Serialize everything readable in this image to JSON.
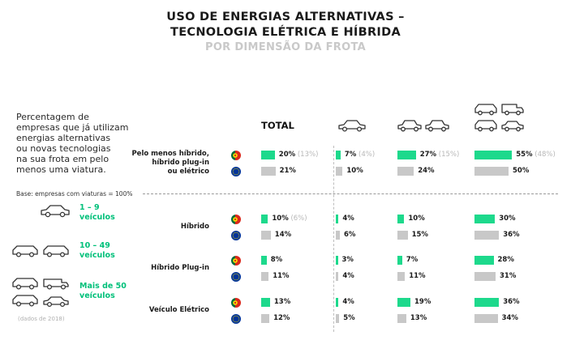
{
  "title": {
    "line1": "USO DE ENERGIAS ALTERNATIVAS –",
    "line2": "TECNOLOGIA ELÉTRICA E HÍBRIDA",
    "subtitle": "POR DIMENSÃO DA FROTA"
  },
  "description": [
    "Percentagem de",
    "empresas que já utilizam",
    "energias alternativas",
    "ou novas tecnologias",
    "na sua frota em pelo",
    "menos uma viatura."
  ],
  "base_note": "Base: empresas com viaturas = 100%",
  "data_note": "(dados de 2018)",
  "legend": [
    {
      "label_lines": [
        "1 – 9",
        "veículos"
      ],
      "icon": "car-icon-1"
    },
    {
      "label_lines": [
        "10 – 49",
        "veículos"
      ],
      "icon": "car-icon-2"
    },
    {
      "label_lines": [
        "Mais de 50",
        "veículos"
      ],
      "icon": "car-icon-4"
    }
  ],
  "columns": {
    "total_label": "TOTAL"
  },
  "colors": {
    "portugal": "#1dd98c",
    "europe": "#c8c8c8",
    "previous": "#b8b8b8",
    "accent_text": "#00c07a"
  },
  "chart_data": {
    "type": "bar",
    "orientation": "horizontal",
    "categories": [
      "Pelo menos híbrido, híbrido plug-in ou elétrico",
      "Híbrido",
      "Híbrido Plug-in",
      "Veículo Elétrico"
    ],
    "category_label_lines": [
      [
        "Pelo menos híbrido,",
        "híbrido plug-in",
        "ou elétrico"
      ],
      [
        "Híbrido"
      ],
      [
        "Híbrido Plug-in"
      ],
      [
        "Veículo Elétrico"
      ]
    ],
    "groups": [
      "TOTAL",
      "1 – 9 veículos",
      "10 – 49 veículos",
      "Mais de 50 veículos"
    ],
    "series": [
      {
        "flag": "portugal",
        "values": [
          [
            20,
            7,
            27,
            55
          ],
          [
            10,
            4,
            10,
            30
          ],
          [
            8,
            3,
            7,
            28
          ],
          [
            13,
            4,
            19,
            36
          ]
        ],
        "previous": [
          [
            13,
            4,
            15,
            48
          ],
          [
            6,
            null,
            null,
            null
          ],
          [
            null,
            null,
            null,
            null
          ],
          [
            null,
            null,
            null,
            null
          ]
        ]
      },
      {
        "flag": "europe",
        "values": [
          [
            21,
            10,
            24,
            50
          ],
          [
            14,
            6,
            15,
            36
          ],
          [
            11,
            4,
            11,
            31
          ],
          [
            12,
            5,
            13,
            34
          ]
        ]
      }
    ],
    "unit": "%"
  }
}
